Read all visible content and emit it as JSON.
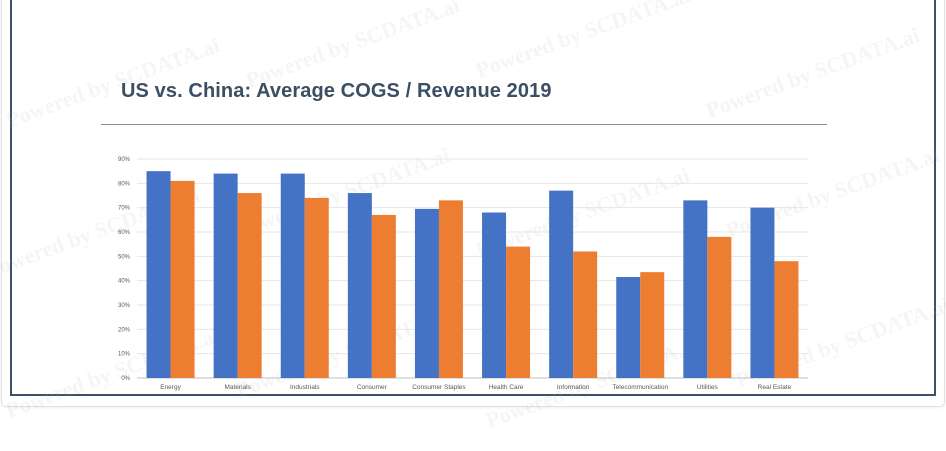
{
  "watermark": "Powered by SCDATA.ai",
  "colors": {
    "us": "#4472c4",
    "china": "#ed7d31",
    "grid": "#e6e6e6",
    "title": "#3b4f63"
  },
  "chart_data": {
    "type": "bar",
    "title": "US vs. China: Average COGS / Revenue 2019",
    "xlabel": "",
    "ylabel": "",
    "ylim": [
      0,
      90
    ],
    "yticks": [
      0,
      10,
      20,
      30,
      40,
      50,
      60,
      70,
      80,
      90
    ],
    "ytick_labels": [
      "0%",
      "10%",
      "20%",
      "30%",
      "40%",
      "50%",
      "60%",
      "70%",
      "80%",
      "90%"
    ],
    "grid": true,
    "legend": "none",
    "categories": [
      "Energy",
      "Materials",
      "Industrials",
      "Consumer",
      "Consumer Staples",
      "Health Care",
      "Information",
      "Telecommunication",
      "Utilities",
      "Real Estate"
    ],
    "series": [
      {
        "name": "US",
        "color": "#4472c4",
        "values": [
          85,
          84,
          84,
          76,
          69.5,
          68,
          77,
          41.5,
          73,
          70
        ]
      },
      {
        "name": "China",
        "color": "#ed7d31",
        "values": [
          81,
          76,
          74,
          67,
          73,
          54,
          52,
          43.5,
          58,
          48
        ]
      }
    ]
  }
}
